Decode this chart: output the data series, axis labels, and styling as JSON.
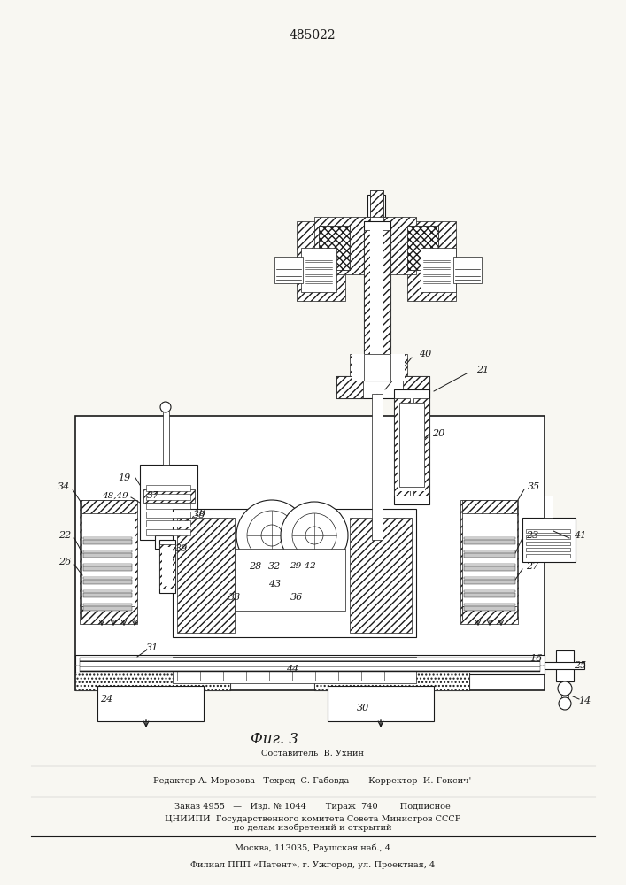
{
  "patent_number": "485022",
  "fig_label": "Фиг. 3",
  "bg_color": "#f0efea",
  "line_color": "#1a1a1a",
  "footer_lines": [
    "Составитель  В. Ухнин",
    "Редактор А. Морозова   Техред  С. Габовда       Корректор  И. Гоксич'",
    "Заказ 4955   —   Изд. № 1044       Тираж  740        Подписное",
    "ЦНИИПИ  Государственного комитета Совета Министров СССР",
    "по делам изобретений и открытий",
    "Москва, 113035, Раушская наб., 4",
    "Филиал ППП «Патент», г. Ужгород, ул. Проектная, 4"
  ]
}
